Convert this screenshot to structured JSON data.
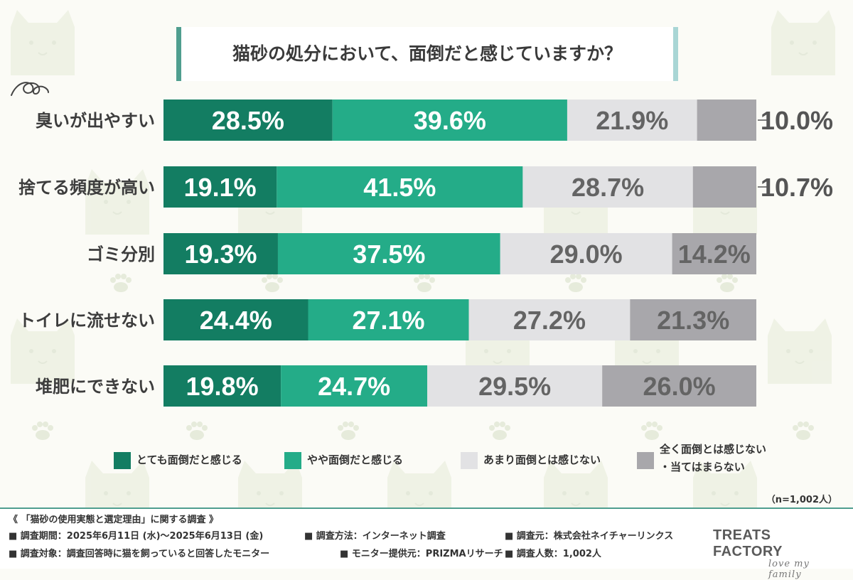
{
  "title": "猫砂の処分において、面倒だと感じていますか？",
  "colors": [
    "#137d62",
    "#24ac88",
    "#e2e2e4",
    "#a8a7ab"
  ],
  "label_colors": [
    "#ffffff",
    "#ffffff",
    "#646464",
    "#646464"
  ],
  "chart_data": {
    "type": "bar",
    "orientation": "horizontal-stacked-100",
    "title": "猫砂の処分において、面倒だと感じていますか？",
    "categories": [
      "臭いが出やすい",
      "捨てる頻度が高い",
      "ゴミ分別",
      "トイレに流せない",
      "堆肥にできない"
    ],
    "series": [
      {
        "name": "とても面倒だと感じる",
        "values": [
          28.5,
          19.1,
          19.3,
          24.4,
          19.8
        ],
        "labels": [
          "28.5%",
          "19.1%",
          "19.3%",
          "24.4%",
          "19.8%"
        ]
      },
      {
        "name": "やや面倒だと感じる",
        "values": [
          39.6,
          41.5,
          37.5,
          27.1,
          24.7
        ],
        "labels": [
          "39.6%",
          "41.5%",
          "37.5%",
          "27.1%",
          "24.7%"
        ]
      },
      {
        "name": "あまり面倒とは感じない",
        "values": [
          21.9,
          28.7,
          29.0,
          27.2,
          29.5
        ],
        "labels": [
          "21.9%",
          "28.7%",
          "29.0%",
          "27.2%",
          "29.5%"
        ]
      },
      {
        "name": "全く面倒とは感じない\n・当てはまらない",
        "values": [
          10.0,
          10.7,
          14.2,
          21.3,
          26.0
        ],
        "labels": [
          "10.0%",
          "10.7%",
          "14.2%",
          "21.3%",
          "26.0%"
        ]
      }
    ],
    "xlim": [
      0,
      100
    ],
    "legend": "bottom"
  },
  "legend": [
    {
      "label": "とても面倒だと感じる"
    },
    {
      "label": "やや面倒だと感じる"
    },
    {
      "label": "あまり面倒とは感じない"
    },
    {
      "label": "全く面倒とは感じない\n・当てはまらない"
    }
  ],
  "sample_note": "（n=1,002人）",
  "footer": {
    "survey_title": "《 「猫砂の使用実態と選定理由」に関する調査 》",
    "period": "■ 調査期間：2025年6月11日 (水)〜2025年6月13日 (金)",
    "method": "■ 調査方法：インターネット調査",
    "organizer": "■ 調査元：株式会社ネイチャーリンクス",
    "target": "■ 調査対象：調査回答時に猫を飼っていると回答したモニター",
    "provider": "■ モニター提供元：PRIZMAリサーチ",
    "count": "■ 調査人数：1,002人",
    "brand": "TREATS FACTORY",
    "brand_tagline": "love my family"
  }
}
